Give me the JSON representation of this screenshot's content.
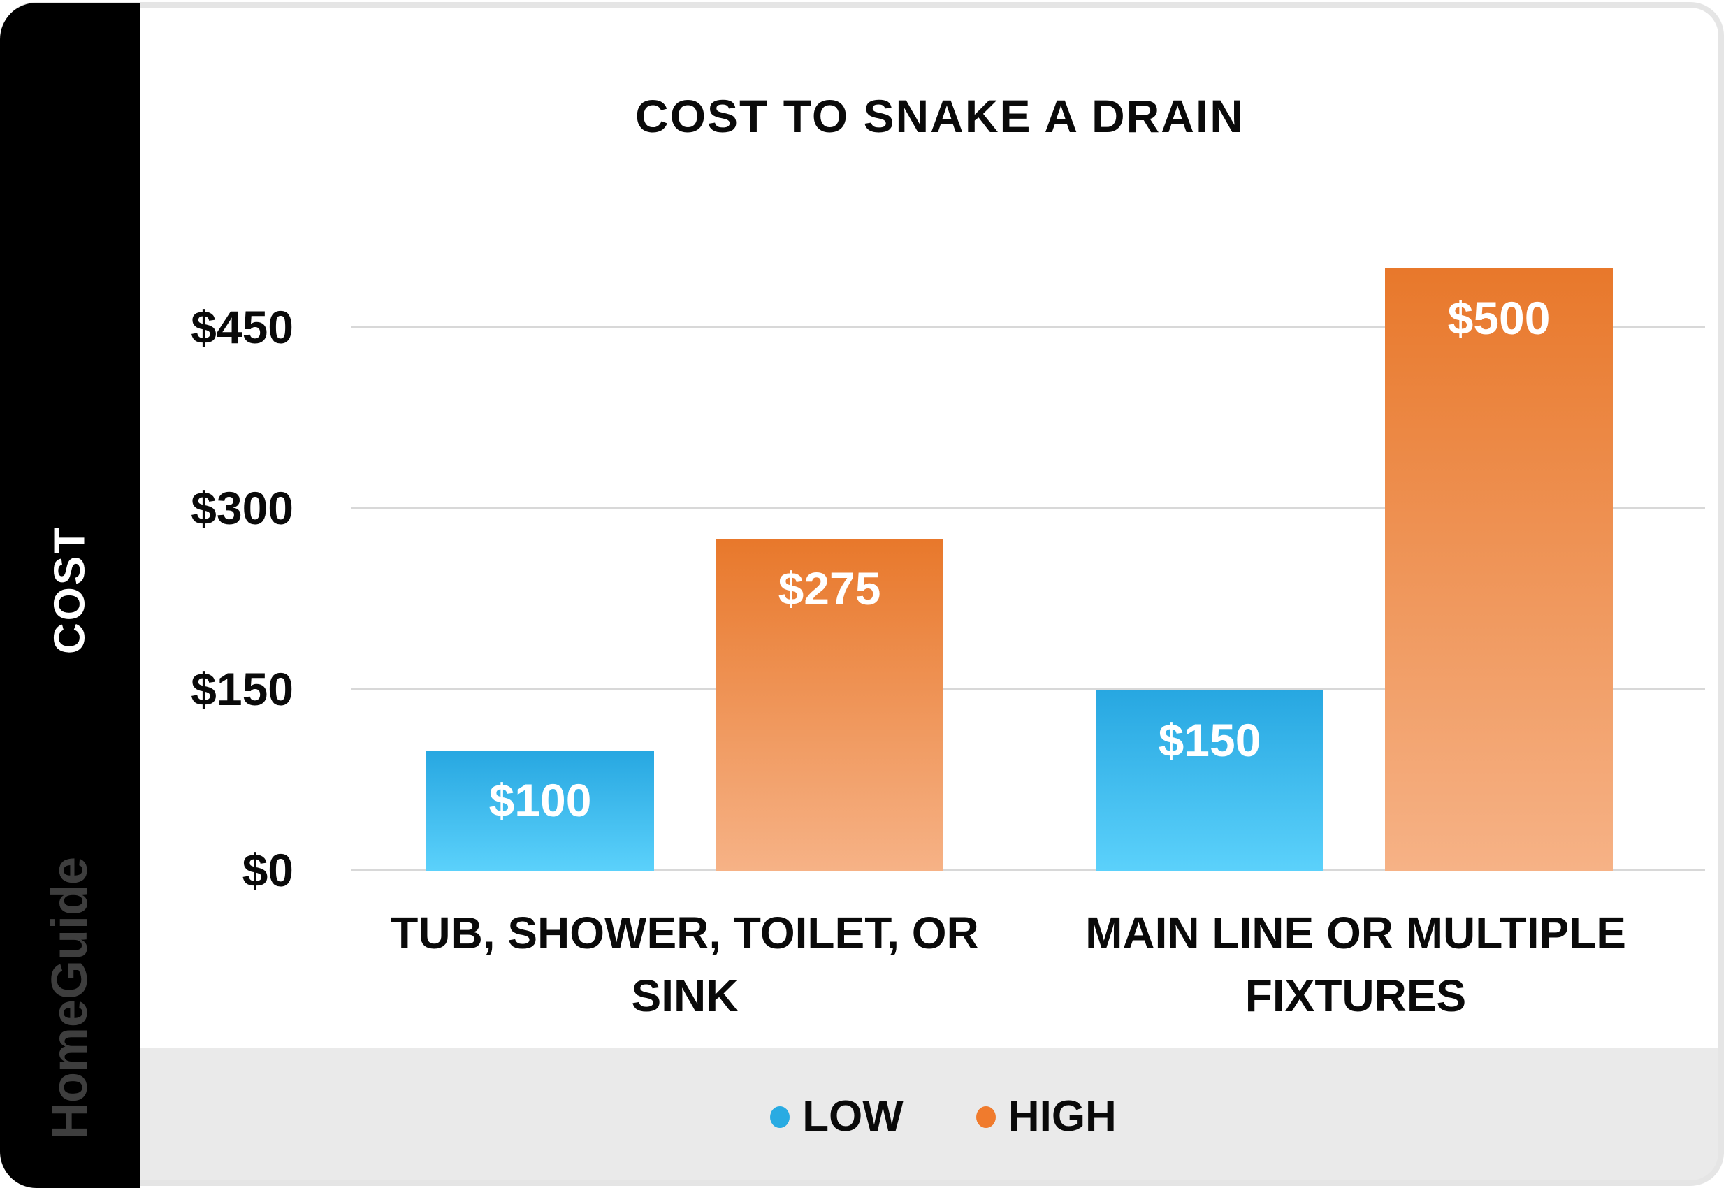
{
  "header": {
    "title": "COST TO SNAKE A DRAIN"
  },
  "y_axis": {
    "label": "COST",
    "tick_labels": [
      "$450",
      "$300",
      "$150",
      "$0"
    ]
  },
  "bars": [
    {
      "series": "LOW",
      "category": "TUB, SHOWER, TOILET, OR SINK",
      "label": "$100",
      "value": 100
    },
    {
      "series": "HIGH",
      "category": "TUB, SHOWER, TOILET, OR SINK",
      "label": "$275",
      "value": 275
    },
    {
      "series": "LOW",
      "category": "MAIN LINE OR MULTIPLE FIXTURES",
      "label": "$150",
      "value": 150
    },
    {
      "series": "HIGH",
      "category": "MAIN LINE OR MULTIPLE FIXTURES",
      "label": "$500",
      "value": 500
    }
  ],
  "x_axis": {
    "categories": [
      {
        "line1": "TUB, SHOWER, TOILET, OR",
        "line2": "SINK"
      },
      {
        "line1": "MAIN LINE OR MULTIPLE",
        "line2": "FIXTURES"
      }
    ]
  },
  "legend": {
    "items": [
      {
        "label": "LOW",
        "color": "#29ABE2"
      },
      {
        "label": "HIGH",
        "color": "#F07B2D"
      }
    ]
  },
  "branding": {
    "watermark": "HomeGuide"
  },
  "colors": {
    "low_gradient_top": "#27A7E1",
    "low_gradient_bottom": "#5BD1FB",
    "high_gradient_top": "#E8782B",
    "high_gradient_bottom": "#F6B286",
    "gridline": "#D8D8D8",
    "legend_band": "#EAEAEA",
    "sidebar": "#000000"
  },
  "chart_data": {
    "type": "bar",
    "title": "COST TO SNAKE A DRAIN",
    "categories": [
      "TUB, SHOWER, TOILET, OR SINK",
      "MAIN LINE OR MULTIPLE FIXTURES"
    ],
    "series": [
      {
        "name": "LOW",
        "values": [
          100,
          150
        ],
        "color": "#29ABE2"
      },
      {
        "name": "HIGH",
        "values": [
          275,
          500
        ],
        "color": "#F07B2D"
      }
    ],
    "data_labels": {
      "LOW": [
        "$100",
        "$150"
      ],
      "HIGH": [
        "$275",
        "$500"
      ]
    },
    "xlabel": "",
    "ylabel": "COST",
    "ylim": [
      0,
      525
    ],
    "yticks": [
      0,
      150,
      300,
      450
    ],
    "ytick_labels": [
      "$0",
      "$150",
      "$300",
      "$450"
    ],
    "grid": true,
    "legend_position": "bottom"
  }
}
